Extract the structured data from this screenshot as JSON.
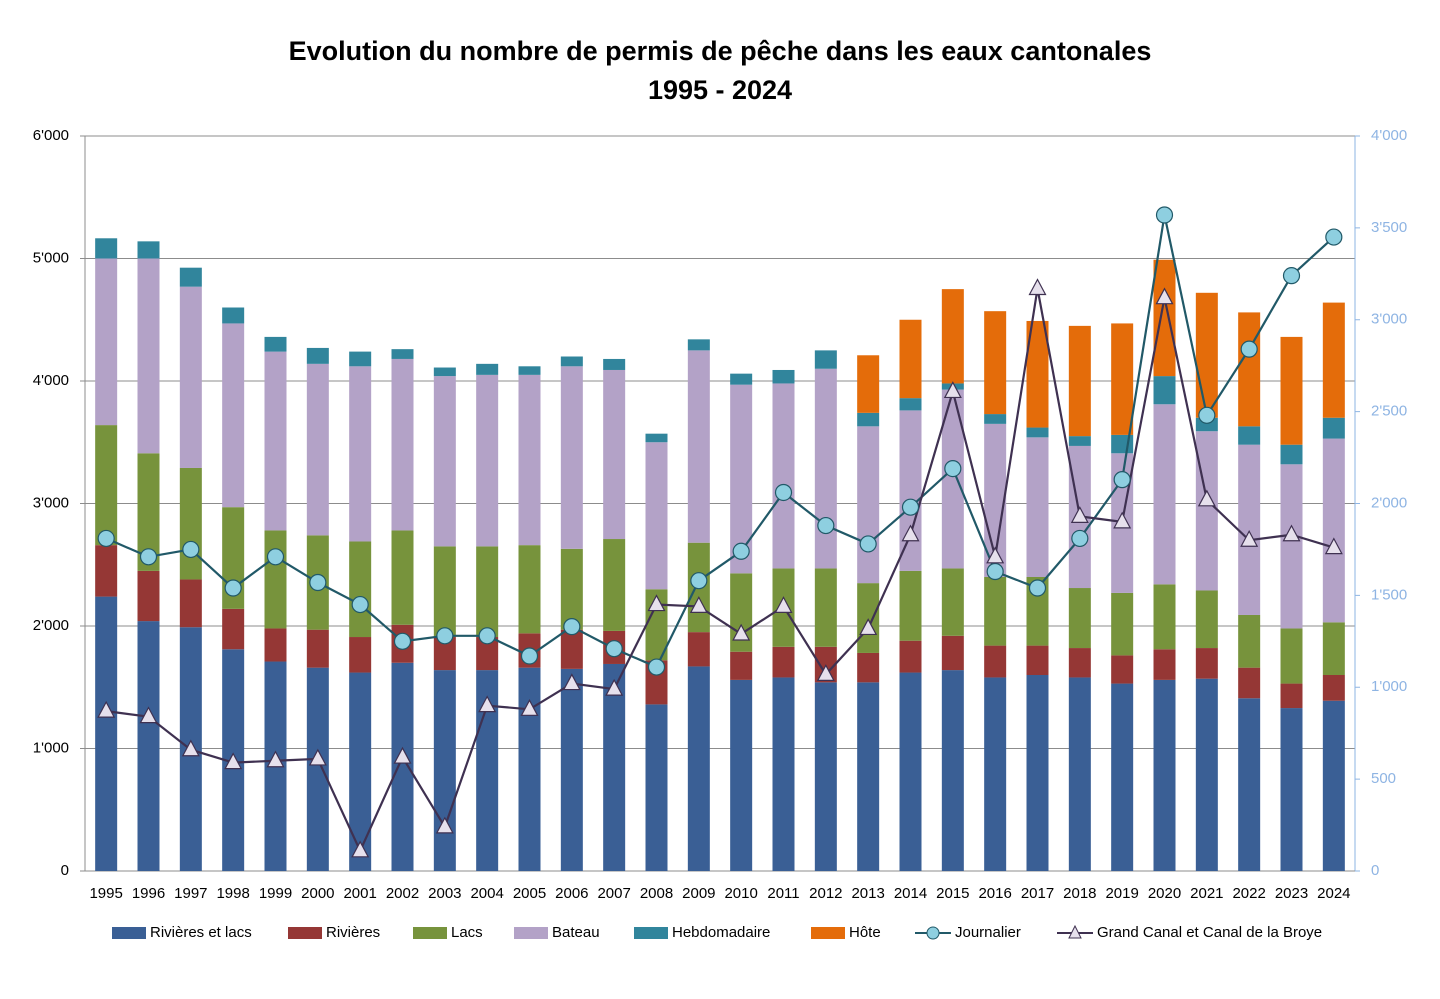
{
  "chart_data": {
    "type": "stacked-bar-line",
    "title": "Evolution du nombre de permis de pêche dans les eaux cantonales",
    "subtitle": "1995 - 2024",
    "categories": [
      "1995",
      "1996",
      "1997",
      "1998",
      "1999",
      "2000",
      "2001",
      "2002",
      "2003",
      "2004",
      "2005",
      "2006",
      "2007",
      "2008",
      "2009",
      "2010",
      "2011",
      "2012",
      "2013",
      "2014",
      "2015",
      "2016",
      "2017",
      "2018",
      "2019",
      "2020",
      "2021",
      "2022",
      "2023",
      "2024"
    ],
    "series": [
      {
        "name": "Rivières et lacs",
        "color": "#3a5f95",
        "values": [
          2240,
          2040,
          1990,
          1810,
          1710,
          1660,
          1620,
          1700,
          1640,
          1640,
          1660,
          1650,
          1690,
          1360,
          1670,
          1560,
          1580,
          1540,
          1540,
          1620,
          1640,
          1580,
          1600,
          1580,
          1530,
          1560,
          1570,
          1410,
          1330,
          1390
        ]
      },
      {
        "name": "Rivières",
        "color": "#953735",
        "values": [
          420,
          410,
          390,
          330,
          270,
          310,
          290,
          310,
          270,
          270,
          280,
          320,
          270,
          360,
          280,
          230,
          250,
          290,
          240,
          260,
          280,
          260,
          240,
          240,
          230,
          250,
          250,
          250,
          200,
          210
        ]
      },
      {
        "name": "Lacs",
        "color": "#77933c",
        "values": [
          980,
          960,
          910,
          830,
          800,
          770,
          780,
          770,
          740,
          740,
          720,
          660,
          750,
          580,
          730,
          640,
          640,
          640,
          570,
          570,
          550,
          560,
          560,
          490,
          510,
          530,
          470,
          430,
          450,
          430
        ]
      },
      {
        "name": "Bateau",
        "color": "#b3a2c7",
        "values": [
          1360,
          1590,
          1480,
          1500,
          1460,
          1400,
          1430,
          1400,
          1390,
          1400,
          1390,
          1490,
          1380,
          1200,
          1570,
          1540,
          1510,
          1630,
          1280,
          1310,
          1460,
          1250,
          1140,
          1160,
          1140,
          1470,
          1300,
          1390,
          1340,
          1500
        ]
      },
      {
        "name": "Hebdomadaire",
        "color": "#31859c",
        "values": [
          165,
          140,
          155,
          130,
          120,
          130,
          120,
          80,
          70,
          90,
          70,
          80,
          90,
          70,
          90,
          90,
          110,
          150,
          110,
          100,
          50,
          80,
          80,
          80,
          150,
          230,
          110,
          150,
          160,
          170
        ]
      },
      {
        "name": "Hôte",
        "color": "#e46c0a",
        "values": [
          null,
          null,
          null,
          null,
          null,
          null,
          null,
          null,
          null,
          null,
          null,
          null,
          null,
          null,
          null,
          null,
          null,
          null,
          470,
          640,
          770,
          840,
          870,
          900,
          910,
          950,
          1020,
          930,
          880,
          940
        ]
      },
      {
        "name": "Journalier",
        "color": "#215968",
        "marker_color": "#8ecfe0",
        "marker": "circle",
        "axis": "y2",
        "values": [
          1810,
          1710,
          1750,
          1540,
          1710,
          1570,
          1450,
          1250,
          1280,
          1280,
          1170,
          1330,
          1210,
          1110,
          1580,
          1740,
          2060,
          1880,
          1780,
          1980,
          2190,
          1630,
          1540,
          1810,
          2130,
          3570,
          2480,
          2840,
          3240,
          3450
        ]
      },
      {
        "name": "Grand Canal et Canal de la Broye",
        "color": "#3f3151",
        "marker_color": "#e6e0ec",
        "marker": "triangle",
        "axis": "y2",
        "values": [
          870,
          840,
          660,
          590,
          600,
          610,
          110,
          620,
          240,
          900,
          880,
          1020,
          990,
          1450,
          1440,
          1290,
          1440,
          1070,
          1320,
          1830,
          2610,
          1710,
          3170,
          1930,
          1900,
          3120,
          2020,
          1800,
          1830,
          1760
        ]
      }
    ],
    "ylim": [
      0,
      6000
    ],
    "yticks": [
      0,
      {
        "value": 1000,
        "label": "1'000"
      },
      {
        "value": 2000,
        "label": "2'000"
      },
      {
        "value": 3000,
        "label": "3'000"
      },
      {
        "value": 4000,
        "label": "4'000"
      },
      {
        "value": 5000,
        "label": "5'000"
      },
      {
        "value": 6000,
        "label": "6'000"
      }
    ],
    "y2lim": [
      0,
      4000
    ],
    "y2ticks": [
      0,
      500,
      {
        "value": 1000,
        "label": "1'000"
      },
      {
        "value": 1500,
        "label": "1'500"
      },
      {
        "value": 2000,
        "label": "2'000"
      },
      {
        "value": 2500,
        "label": "2'500"
      },
      {
        "value": 3000,
        "label": "3'000"
      },
      {
        "value": 3500,
        "label": "3'500"
      },
      {
        "value": 4000,
        "label": "4'000"
      }
    ],
    "grid": true,
    "legend": "bottom"
  }
}
